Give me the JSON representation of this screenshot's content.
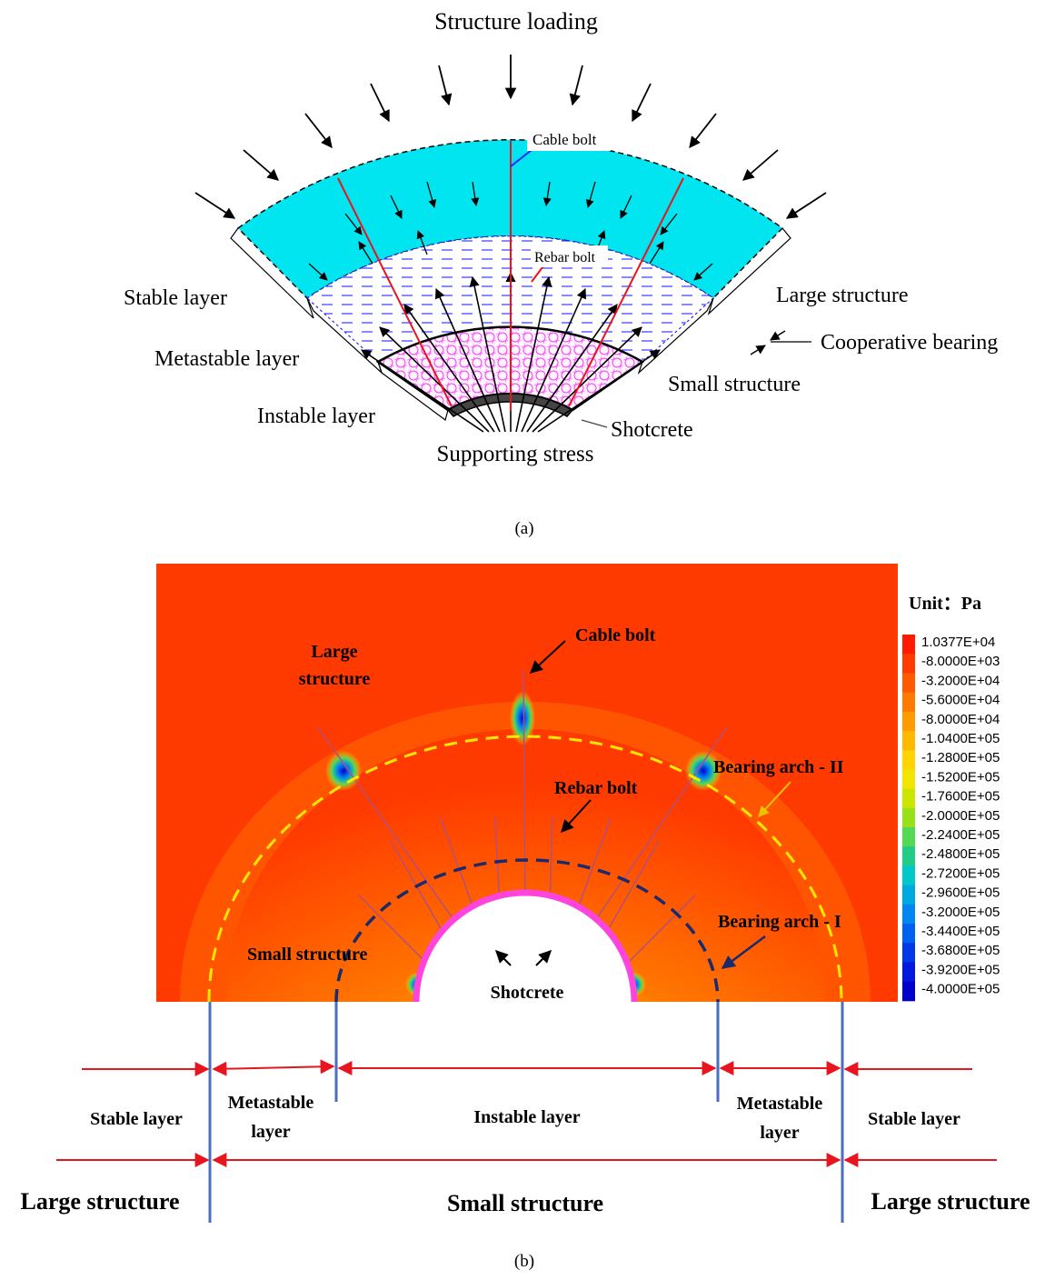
{
  "panel_a": {
    "caption": "(a)",
    "labels": {
      "structure_loading": "Structure loading",
      "cable_bolt": "Cable bolt",
      "rebar_bolt": "Rebar bolt",
      "stable_layer": "Stable layer",
      "metastable_layer": "Metastable layer",
      "instable_layer": "Instable layer",
      "supporting_stress": "Supporting stress",
      "shotcrete": "Shotcrete",
      "large_structure": "Large structure",
      "small_structure": "Small structure",
      "cooperative_bearing": "Cooperative bearing"
    },
    "colors": {
      "stable": "#00e5f0",
      "metastable_dash": "#2a2aff",
      "instable_net": "#ff33ff",
      "bolt_red": "#e8141e"
    }
  },
  "panel_b": {
    "caption": "(b)",
    "labels": {
      "large_structure_top_1": "Large",
      "large_structure_top_2": "structure",
      "cable_bolt": "Cable  bolt",
      "rebar_bolt": "Rebar  bolt",
      "bearing_arch_2": "Bearing arch - II",
      "bearing_arch_1": "Bearing arch - I",
      "small_structure": "Small structure",
      "shotcrete": "Shotcrete"
    },
    "legend": {
      "unit": "Unit：Pa",
      "values": [
        "1.0377E+04",
        "-8.0000E+03",
        "-3.2000E+04",
        "-5.6000E+04",
        "-8.0000E+04",
        "-1.0400E+05",
        "-1.2800E+05",
        "-1.5200E+05",
        "-1.7600E+05",
        "-2.0000E+05",
        "-2.2400E+05",
        "-2.4800E+05",
        "-2.7200E+05",
        "-2.9600E+05",
        "-3.2000E+05",
        "-3.4400E+05",
        "-3.6800E+05",
        "-3.9200E+05",
        "-4.0000E+05"
      ],
      "colors": [
        "#ff1a00",
        "#ff3a00",
        "#ff5a00",
        "#ff7a00",
        "#ff9a00",
        "#ffb800",
        "#ffd400",
        "#f2e600",
        "#cce600",
        "#99e01a",
        "#55d855",
        "#22cc88",
        "#00c8c8",
        "#00a8e0",
        "#0088f0",
        "#0060f0",
        "#0038e8",
        "#0018e0",
        "#0000cc"
      ]
    },
    "layers_row": {
      "stable_left": "Stable layer",
      "metastable_left_1": "Metastable",
      "metastable_left_2": "layer",
      "instable": "Instable  layer",
      "metastable_right_1": "Metastable",
      "metastable_right_2": "layer",
      "stable_right": "Stable layer"
    },
    "structure_row": {
      "large_left": "Large structure",
      "small": "Small structure",
      "large_right": "Large structure"
    }
  }
}
